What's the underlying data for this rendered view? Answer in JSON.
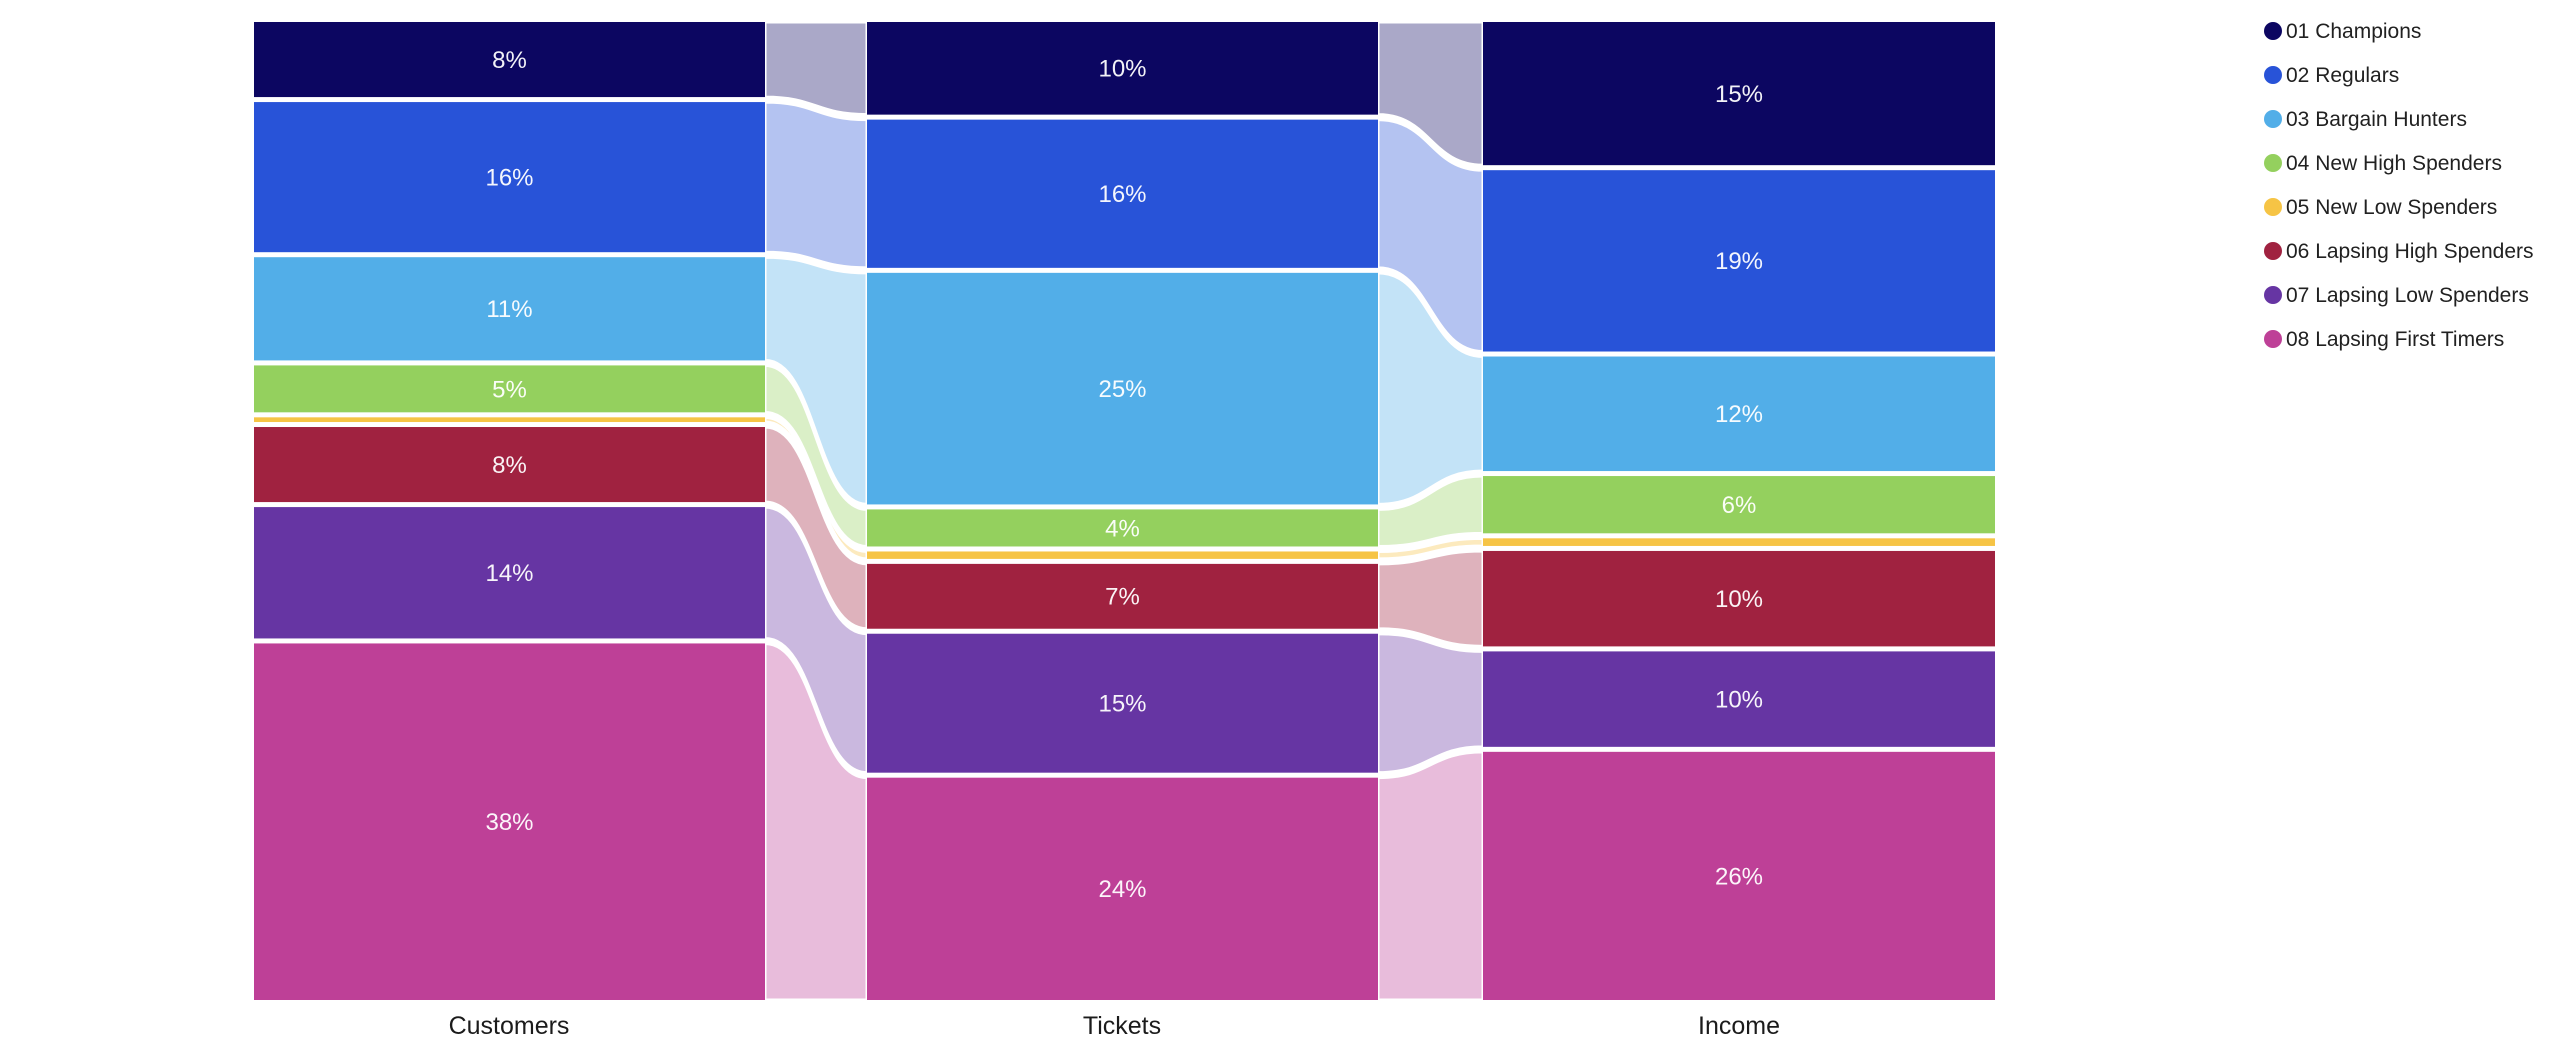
{
  "chart_data": {
    "type": "ribbon",
    "title": "",
    "categories": [
      "Customers",
      "Tickets",
      "Income"
    ],
    "value_format": "percent",
    "legend_position": "right",
    "grid": false,
    "series": [
      {
        "name": "01 Champions",
        "color": "#0C0661",
        "values": [
          8,
          10,
          15
        ],
        "labels": [
          "8%",
          "10%",
          "15%"
        ]
      },
      {
        "name": "02 Regulars",
        "color": "#2853D8",
        "values": [
          16,
          16,
          19
        ],
        "labels": [
          "16%",
          "16%",
          "19%"
        ]
      },
      {
        "name": "03 Bargain Hunters",
        "color": "#52AEE8",
        "values": [
          11,
          25,
          12
        ],
        "labels": [
          "11%",
          "25%",
          "12%"
        ]
      },
      {
        "name": "04 New High Spenders",
        "color": "#94D05E",
        "values": [
          5,
          4,
          6
        ],
        "labels": [
          "5%",
          "4%",
          "6%"
        ]
      },
      {
        "name": "05 New Low Spenders",
        "color": "#F6C445",
        "values": [
          0.5,
          0.8,
          0.8
        ],
        "labels": [
          null,
          null,
          null
        ]
      },
      {
        "name": "06 Lapsing High Spenders",
        "color": "#A02240",
        "values": [
          8,
          7,
          10
        ],
        "labels": [
          "8%",
          "7%",
          "10%"
        ]
      },
      {
        "name": "07 Lapsing Low Spenders",
        "color": "#6635A3",
        "values": [
          14,
          15,
          10
        ],
        "labels": [
          "14%",
          "15%",
          "10%"
        ]
      },
      {
        "name": "08 Lapsing First Timers",
        "color": "#BE4097",
        "values": [
          38,
          24,
          26
        ],
        "labels": [
          "38%",
          "24%",
          "26%"
        ]
      }
    ]
  }
}
